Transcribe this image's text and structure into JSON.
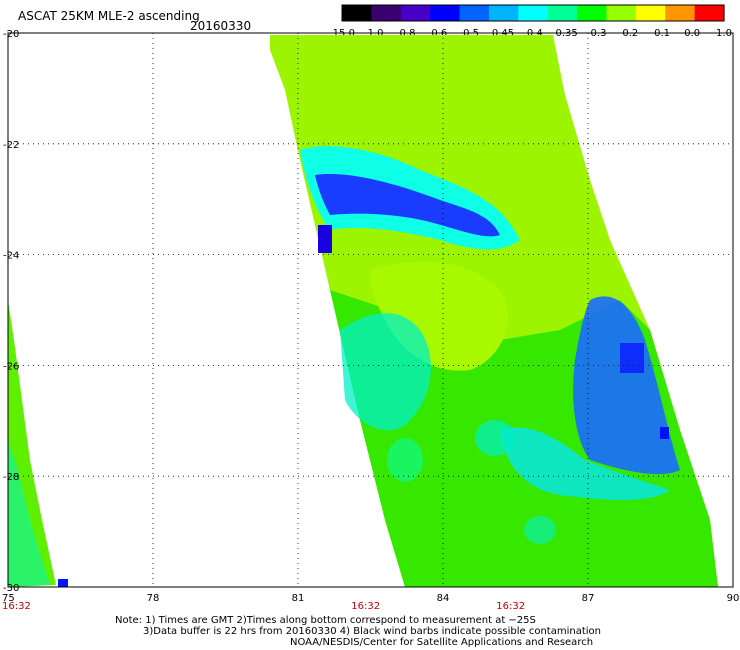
{
  "header": {
    "title": "ASCAT 25KM MLE-2 ascending",
    "date": "20160330"
  },
  "colorbar": {
    "labels": [
      "-15.0",
      "-1.0",
      "-0.8",
      "-0.6",
      "-0.5",
      "-0.45",
      "-0.4",
      "-0.35",
      "-0.3",
      "-0.2",
      "-0.1",
      "0.0",
      "1.0"
    ],
    "colors": [
      "#000000",
      "#3a0070",
      "#4800c8",
      "#0000ff",
      "#0064ff",
      "#00b4ff",
      "#00ffff",
      "#00ff96",
      "#00ff00",
      "#96ff00",
      "#ffff00",
      "#ff9600",
      "#ff0000"
    ]
  },
  "map": {
    "x_ticks": [
      "75",
      "78",
      "81",
      "84",
      "87",
      "90"
    ],
    "y_ticks": [
      "-20",
      "-22",
      "-24",
      "-26",
      "-28",
      "-30"
    ],
    "time_labels": [
      "16:32",
      "16:32",
      "16:32"
    ],
    "time_label_lon": [
      75,
      82.4,
      85.4
    ],
    "lon_range": [
      75,
      90
    ],
    "lat_range": [
      -20,
      -30
    ],
    "swath_color": "#9cf400",
    "time_color": "#c00000"
  },
  "notes": {
    "line1": "Note: 1) Times are GMT 2)Times along bottom correspond to measurement at −25S",
    "line2": "3)Data buffer is 22 hrs from 20160330 4) Black wind barbs indicate possible contamination",
    "line3": "NOAA/NESDIS/Center for Satellite Applications and Research"
  }
}
